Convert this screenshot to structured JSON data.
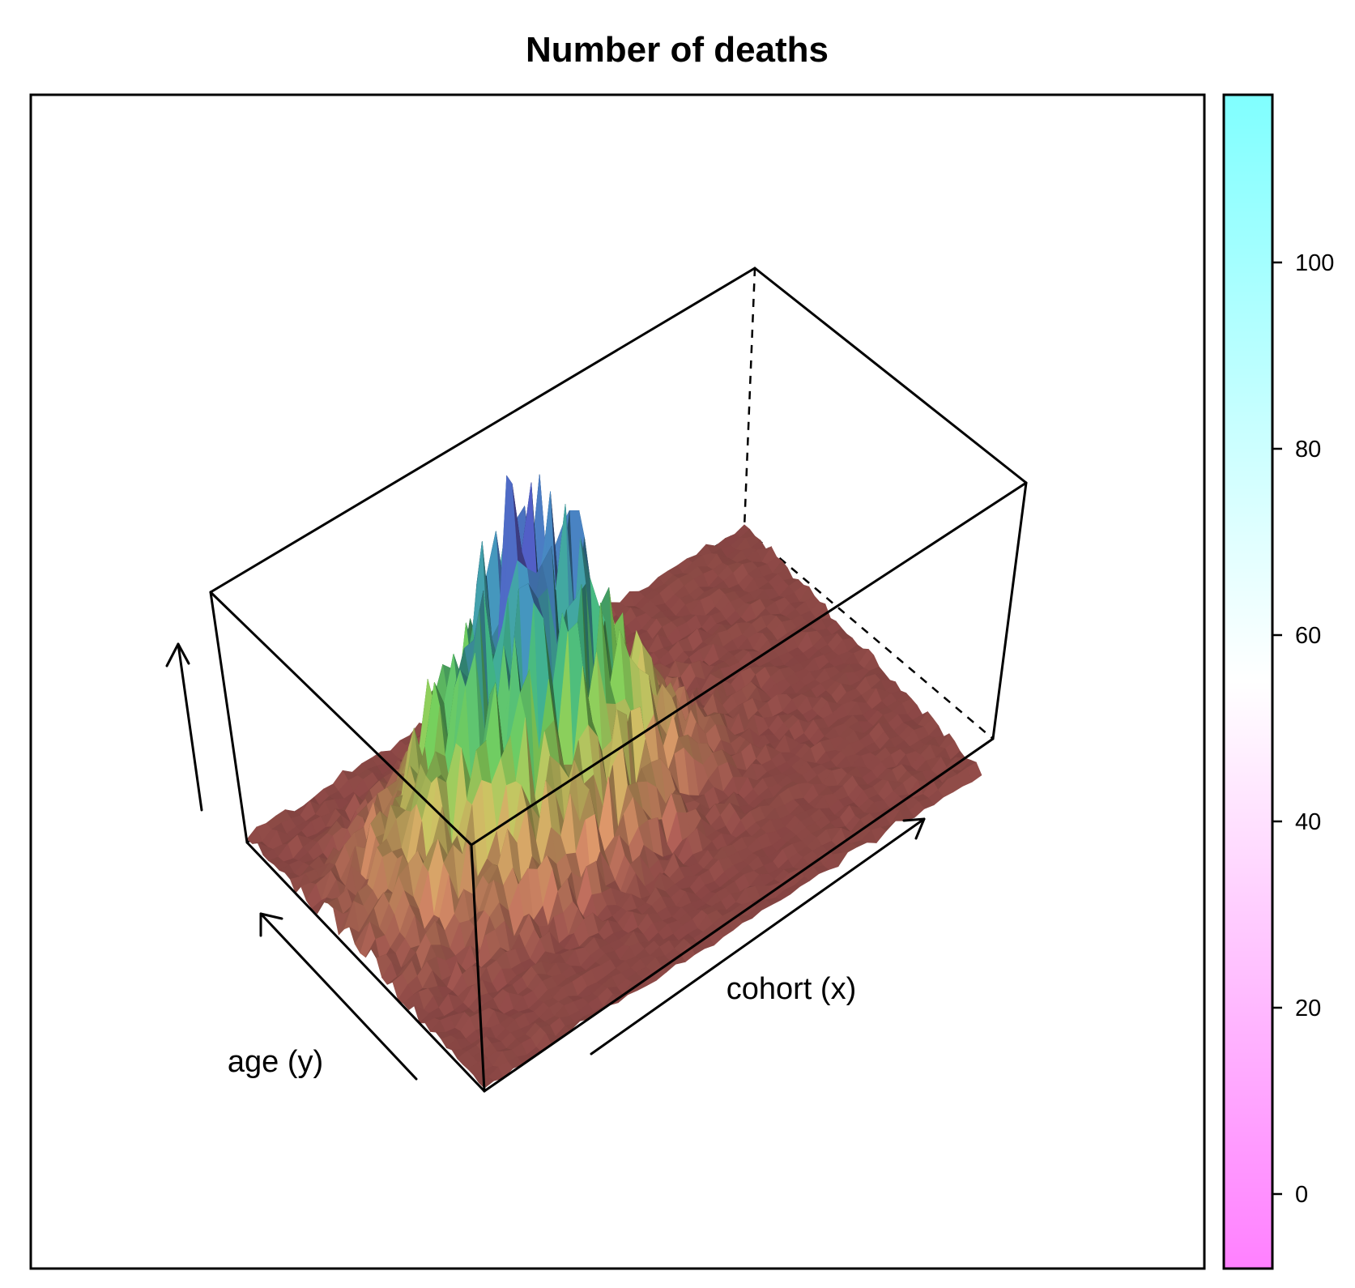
{
  "chart_data": {
    "type": "surface3d",
    "title": "Number of deaths",
    "xlabel": "cohort (x)",
    "ylabel": "age (y)",
    "zlabel": "",
    "zlim": [
      0,
      100
    ],
    "surface_description_peak": 100,
    "colorkey": {
      "ticks": [
        "0",
        "20",
        "40",
        "60",
        "80",
        "100"
      ],
      "tick_values": [
        0,
        20,
        40,
        60,
        80,
        100
      ],
      "range": [
        -8,
        118
      ],
      "colors": {
        "low": "#ff80ff",
        "mid": "#ffffff",
        "high": "#80ffff"
      }
    },
    "surface_colors": [
      "#b45a5a",
      "#c98a60",
      "#b9b35a",
      "#6fbf52",
      "#3aa67c",
      "#3f87b0",
      "#4b55b5",
      "#7b3e98"
    ],
    "grid": false,
    "legend_placement": "right"
  }
}
